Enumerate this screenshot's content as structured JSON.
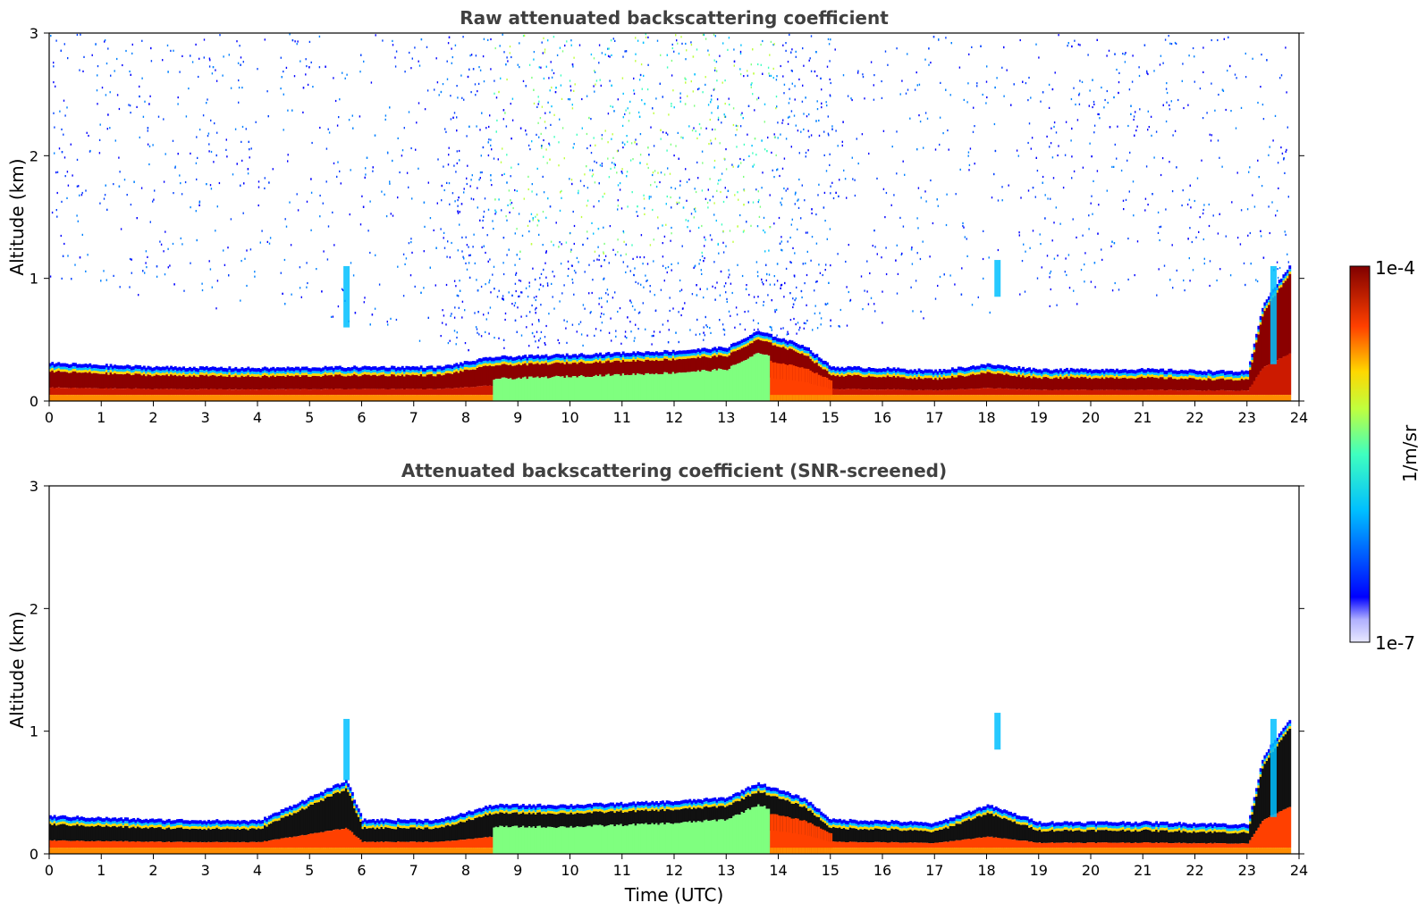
{
  "chart_data": [
    {
      "type": "heatmap",
      "title": "Raw attenuated backscattering coefficient",
      "xlabel": "",
      "ylabel": "Altitude (km)",
      "xlim": [
        0,
        24
      ],
      "ylim": [
        0,
        3
      ],
      "xticks": [
        "0",
        "1",
        "2",
        "3",
        "4",
        "5",
        "6",
        "7",
        "8",
        "9",
        "10",
        "11",
        "12",
        "13",
        "14",
        "15",
        "16",
        "17",
        "18",
        "19",
        "20",
        "21",
        "22",
        "23",
        "24"
      ],
      "yticks": [
        "0",
        "1",
        "2",
        "3"
      ],
      "boundary_layer_top_km": {
        "x": [
          0,
          2,
          4,
          6,
          7.5,
          8.5,
          10,
          12,
          13,
          13.6,
          14.5,
          15,
          16,
          17,
          18,
          19,
          20,
          21,
          22,
          23,
          23.3,
          23.8
        ],
        "y": [
          0.31,
          0.28,
          0.27,
          0.28,
          0.28,
          0.36,
          0.38,
          0.41,
          0.44,
          0.57,
          0.45,
          0.28,
          0.27,
          0.25,
          0.3,
          0.26,
          0.26,
          0.26,
          0.25,
          0.24,
          0.8,
          1.1
        ]
      },
      "noise_region_km": {
        "x": [
          0,
          8,
          11,
          14.5,
          24
        ],
        "y": [
          1.0,
          0.4,
          0.45,
          0.55,
          1.0
        ]
      }
    },
    {
      "type": "heatmap",
      "title": "Attenuated backscattering coefficient (SNR-screened)",
      "xlabel": "Time (UTC)",
      "ylabel": "Altitude (km)",
      "xlim": [
        0,
        24
      ],
      "ylim": [
        0,
        3
      ],
      "xticks": [
        "0",
        "1",
        "2",
        "3",
        "4",
        "5",
        "6",
        "7",
        "8",
        "9",
        "10",
        "11",
        "12",
        "13",
        "14",
        "15",
        "16",
        "17",
        "18",
        "19",
        "20",
        "21",
        "22",
        "23",
        "24"
      ],
      "yticks": [
        "0",
        "1",
        "2",
        "3"
      ],
      "boundary_layer_top_km": {
        "x": [
          0,
          2,
          4,
          5.7,
          6,
          7.5,
          8.5,
          10,
          12,
          13,
          13.6,
          14.5,
          15,
          16,
          17,
          18,
          19,
          20,
          21,
          22,
          23,
          23.3,
          23.8
        ],
        "y": [
          0.31,
          0.28,
          0.27,
          0.6,
          0.28,
          0.28,
          0.4,
          0.4,
          0.43,
          0.46,
          0.58,
          0.45,
          0.28,
          0.27,
          0.25,
          0.4,
          0.26,
          0.26,
          0.26,
          0.25,
          0.24,
          0.8,
          1.1
        ]
      }
    }
  ],
  "colorbar": {
    "max_label": "1e-4",
    "min_label": "1e-7",
    "unit_label": "1/m/sr",
    "scale": "log"
  },
  "colors": {
    "title": "#404040",
    "high": "#800000",
    "mid": "#7fff7f",
    "low": "#0000ff"
  }
}
